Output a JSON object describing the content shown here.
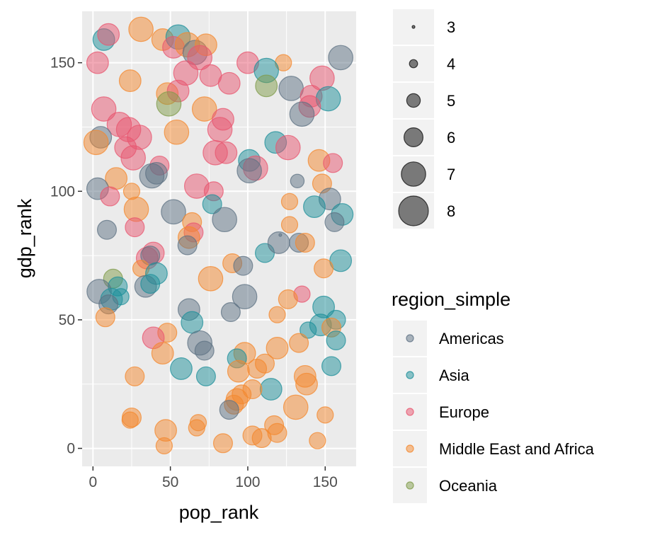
{
  "chart_data": {
    "type": "scatter",
    "xlabel": "pop_rank",
    "ylabel": "gdp_rank",
    "xlim": [
      -7,
      170
    ],
    "ylim": [
      -7,
      170
    ],
    "x_ticks": [
      0,
      50,
      100,
      150
    ],
    "y_ticks": [
      0,
      50,
      100,
      150
    ],
    "x_tick_labels": [
      "0",
      "50",
      "100",
      "150"
    ],
    "y_tick_labels": [
      "0",
      "50",
      "100",
      "150"
    ],
    "grid": true,
    "legend_position": "right",
    "size_legend": {
      "values": [
        3,
        4,
        5,
        6,
        7,
        8
      ],
      "labels": [
        "3",
        "4",
        "5",
        "6",
        "7",
        "8"
      ]
    },
    "color_legend": {
      "title": "region_simple",
      "entries": [
        {
          "name": "Americas",
          "color": "#5e7183"
        },
        {
          "name": "Asia",
          "color": "#1d8f9a"
        },
        {
          "name": "Europe",
          "color": "#e8566f"
        },
        {
          "name": "Middle East and Africa",
          "color": "#f4882d"
        },
        {
          "name": "Oceania",
          "color": "#7f9b4a"
        }
      ]
    },
    "point_opacity": 0.5,
    "points": [
      {
        "x": 7,
        "y": 159,
        "size": 6.5,
        "region": "Asia"
      },
      {
        "x": 10,
        "y": 161,
        "size": 6.5,
        "region": "Europe"
      },
      {
        "x": 31,
        "y": 163,
        "size": 7,
        "region": "Middle East and Africa"
      },
      {
        "x": 45,
        "y": 159,
        "size": 6.5,
        "region": "Middle East and Africa"
      },
      {
        "x": 55,
        "y": 160,
        "size": 7,
        "region": "Asia"
      },
      {
        "x": 52,
        "y": 156,
        "size": 6.5,
        "region": "Europe"
      },
      {
        "x": 61,
        "y": 157,
        "size": 7,
        "region": "Middle East and Africa"
      },
      {
        "x": 66,
        "y": 154,
        "size": 7,
        "region": "Americas"
      },
      {
        "x": 73,
        "y": 157,
        "size": 6.5,
        "region": "Middle East and Africa"
      },
      {
        "x": 69,
        "y": 152,
        "size": 7,
        "region": "Europe"
      },
      {
        "x": 160,
        "y": 152,
        "size": 7,
        "region": "Americas"
      },
      {
        "x": 3,
        "y": 150,
        "size": 6.5,
        "region": "Europe"
      },
      {
        "x": 100,
        "y": 150,
        "size": 6.5,
        "region": "Europe"
      },
      {
        "x": 123,
        "y": 150,
        "size": 5.5,
        "region": "Middle East and Africa"
      },
      {
        "x": 112,
        "y": 147,
        "size": 7,
        "region": "Asia"
      },
      {
        "x": 60,
        "y": 146,
        "size": 7,
        "region": "Europe"
      },
      {
        "x": 76,
        "y": 145,
        "size": 6.5,
        "region": "Europe"
      },
      {
        "x": 88,
        "y": 142,
        "size": 6.5,
        "region": "Europe"
      },
      {
        "x": 24,
        "y": 143,
        "size": 6.5,
        "region": "Middle East and Africa"
      },
      {
        "x": 112,
        "y": 141,
        "size": 6.5,
        "region": "Oceania"
      },
      {
        "x": 128,
        "y": 140,
        "size": 7,
        "region": "Americas"
      },
      {
        "x": 148,
        "y": 144,
        "size": 7,
        "region": "Europe"
      },
      {
        "x": 48,
        "y": 138,
        "size": 6.5,
        "region": "Middle East and Africa"
      },
      {
        "x": 55,
        "y": 139,
        "size": 6.5,
        "region": "Europe"
      },
      {
        "x": 141,
        "y": 137,
        "size": 6.5,
        "region": "Europe"
      },
      {
        "x": 152,
        "y": 136,
        "size": 7,
        "region": "Asia"
      },
      {
        "x": 49,
        "y": 134,
        "size": 7,
        "region": "Oceania"
      },
      {
        "x": 7,
        "y": 132,
        "size": 7,
        "region": "Europe"
      },
      {
        "x": 72,
        "y": 132,
        "size": 7,
        "region": "Middle East and Africa"
      },
      {
        "x": 140,
        "y": 133,
        "size": 6.5,
        "region": "Europe"
      },
      {
        "x": 135,
        "y": 130,
        "size": 7,
        "region": "Americas"
      },
      {
        "x": 17,
        "y": 126,
        "size": 7,
        "region": "Europe"
      },
      {
        "x": 23,
        "y": 124,
        "size": 7,
        "region": "Europe"
      },
      {
        "x": 84,
        "y": 128,
        "size": 6.5,
        "region": "Europe"
      },
      {
        "x": 82,
        "y": 124,
        "size": 7,
        "region": "Europe"
      },
      {
        "x": 54,
        "y": 123,
        "size": 7,
        "region": "Middle East and Africa"
      },
      {
        "x": 5,
        "y": 121,
        "size": 6.5,
        "region": "Americas"
      },
      {
        "x": 30,
        "y": 121,
        "size": 7,
        "region": "Europe"
      },
      {
        "x": 2,
        "y": 119,
        "size": 7,
        "region": "Middle East and Africa"
      },
      {
        "x": 118,
        "y": 119,
        "size": 6.5,
        "region": "Asia"
      },
      {
        "x": 126,
        "y": 117,
        "size": 7,
        "region": "Europe"
      },
      {
        "x": 21,
        "y": 117,
        "size": 6.5,
        "region": "Europe"
      },
      {
        "x": 79,
        "y": 115,
        "size": 7,
        "region": "Europe"
      },
      {
        "x": 86,
        "y": 115,
        "size": 6.5,
        "region": "Europe"
      },
      {
        "x": 26,
        "y": 113,
        "size": 7,
        "region": "Europe"
      },
      {
        "x": 101,
        "y": 112,
        "size": 6.5,
        "region": "Asia"
      },
      {
        "x": 146,
        "y": 112,
        "size": 6.5,
        "region": "Middle East and Africa"
      },
      {
        "x": 155,
        "y": 111,
        "size": 6,
        "region": "Europe"
      },
      {
        "x": 43,
        "y": 110,
        "size": 6,
        "region": "Europe"
      },
      {
        "x": 105,
        "y": 109,
        "size": 7,
        "region": "Europe"
      },
      {
        "x": 101,
        "y": 108,
        "size": 7,
        "region": "Americas"
      },
      {
        "x": 41,
        "y": 107,
        "size": 6.5,
        "region": "Americas"
      },
      {
        "x": 38,
        "y": 106,
        "size": 7,
        "region": "Americas"
      },
      {
        "x": 15,
        "y": 105,
        "size": 6.5,
        "region": "Middle East and Africa"
      },
      {
        "x": 132,
        "y": 104,
        "size": 5,
        "region": "Americas"
      },
      {
        "x": 148,
        "y": 103,
        "size": 6,
        "region": "Middle East and Africa"
      },
      {
        "x": 3,
        "y": 101,
        "size": 6.5,
        "region": "Americas"
      },
      {
        "x": 67,
        "y": 102,
        "size": 7,
        "region": "Europe"
      },
      {
        "x": 78,
        "y": 100,
        "size": 6,
        "region": "Europe"
      },
      {
        "x": 25,
        "y": 100,
        "size": 5.5,
        "region": "Middle East and Africa"
      },
      {
        "x": 11,
        "y": 98,
        "size": 6,
        "region": "Europe"
      },
      {
        "x": 153,
        "y": 97,
        "size": 6.5,
        "region": "Americas"
      },
      {
        "x": 127,
        "y": 96,
        "size": 5.5,
        "region": "Middle East and Africa"
      },
      {
        "x": 77,
        "y": 95,
        "size": 6,
        "region": "Asia"
      },
      {
        "x": 143,
        "y": 94,
        "size": 6.5,
        "region": "Asia"
      },
      {
        "x": 28,
        "y": 93,
        "size": 7,
        "region": "Middle East and Africa"
      },
      {
        "x": 52,
        "y": 92,
        "size": 7,
        "region": "Americas"
      },
      {
        "x": 161,
        "y": 91,
        "size": 6.5,
        "region": "Asia"
      },
      {
        "x": 85,
        "y": 89,
        "size": 7,
        "region": "Americas"
      },
      {
        "x": 64,
        "y": 88,
        "size": 6,
        "region": "Middle East and Africa"
      },
      {
        "x": 156,
        "y": 88,
        "size": 6,
        "region": "Americas"
      },
      {
        "x": 127,
        "y": 87,
        "size": 5.5,
        "region": "Middle East and Africa"
      },
      {
        "x": 9,
        "y": 85,
        "size": 6,
        "region": "Americas"
      },
      {
        "x": 27,
        "y": 86,
        "size": 6,
        "region": "Europe"
      },
      {
        "x": 65,
        "y": 84,
        "size": 6,
        "region": "Europe"
      },
      {
        "x": 62,
        "y": 82,
        "size": 6.5,
        "region": "Middle East and Africa"
      },
      {
        "x": 121,
        "y": 83,
        "size": 3,
        "region": "Americas"
      },
      {
        "x": 133,
        "y": 80,
        "size": 6,
        "region": "Americas"
      },
      {
        "x": 137,
        "y": 80,
        "size": 6,
        "region": "Middle East and Africa"
      },
      {
        "x": 61,
        "y": 79,
        "size": 6,
        "region": "Americas"
      },
      {
        "x": 39,
        "y": 76,
        "size": 6.5,
        "region": "Europe"
      },
      {
        "x": 35,
        "y": 74,
        "size": 6.5,
        "region": "Europe"
      },
      {
        "x": 37,
        "y": 75,
        "size": 6,
        "region": "Americas"
      },
      {
        "x": 111,
        "y": 76,
        "size": 6,
        "region": "Asia"
      },
      {
        "x": 120,
        "y": 80,
        "size": 6.5,
        "region": "Americas"
      },
      {
        "x": 160,
        "y": 73,
        "size": 6.5,
        "region": "Asia"
      },
      {
        "x": 90,
        "y": 72,
        "size": 6,
        "region": "Middle East and Africa"
      },
      {
        "x": 97,
        "y": 71,
        "size": 6,
        "region": "Americas"
      },
      {
        "x": 31,
        "y": 70,
        "size": 5.5,
        "region": "Middle East and Africa"
      },
      {
        "x": 149,
        "y": 70,
        "size": 6,
        "region": "Middle East and Africa"
      },
      {
        "x": 41,
        "y": 68,
        "size": 6.5,
        "region": "Asia"
      },
      {
        "x": 13,
        "y": 66,
        "size": 6,
        "region": "Oceania"
      },
      {
        "x": 16,
        "y": 63,
        "size": 6,
        "region": "Asia"
      },
      {
        "x": 76,
        "y": 66,
        "size": 7,
        "region": "Middle East and Africa"
      },
      {
        "x": 34,
        "y": 63,
        "size": 6.5,
        "region": "Americas"
      },
      {
        "x": 37,
        "y": 64,
        "size": 6,
        "region": "Asia"
      },
      {
        "x": 4,
        "y": 61,
        "size": 7,
        "region": "Americas"
      },
      {
        "x": 135,
        "y": 60,
        "size": 5.5,
        "region": "Europe"
      },
      {
        "x": 12,
        "y": 58,
        "size": 6.5,
        "region": "Asia"
      },
      {
        "x": 18,
        "y": 59,
        "size": 5.5,
        "region": "Asia"
      },
      {
        "x": 98,
        "y": 59,
        "size": 7,
        "region": "Americas"
      },
      {
        "x": 126,
        "y": 58,
        "size": 6,
        "region": "Middle East and Africa"
      },
      {
        "x": 10,
        "y": 56,
        "size": 6,
        "region": "Americas"
      },
      {
        "x": 149,
        "y": 55,
        "size": 6.5,
        "region": "Asia"
      },
      {
        "x": 62,
        "y": 54,
        "size": 6.5,
        "region": "Americas"
      },
      {
        "x": 89,
        "y": 53,
        "size": 6,
        "region": "Americas"
      },
      {
        "x": 119,
        "y": 52,
        "size": 5.5,
        "region": "Middle East and Africa"
      },
      {
        "x": 8,
        "y": 51,
        "size": 6,
        "region": "Middle East and Africa"
      },
      {
        "x": 64,
        "y": 49,
        "size": 6.5,
        "region": "Asia"
      },
      {
        "x": 147,
        "y": 48,
        "size": 6.5,
        "region": "Asia"
      },
      {
        "x": 157,
        "y": 50,
        "size": 6,
        "region": "Asia"
      },
      {
        "x": 154,
        "y": 47,
        "size": 6,
        "region": "Middle East and Africa"
      },
      {
        "x": 139,
        "y": 46,
        "size": 5.5,
        "region": "Asia"
      },
      {
        "x": 48,
        "y": 45,
        "size": 6,
        "region": "Middle East and Africa"
      },
      {
        "x": 39,
        "y": 43,
        "size": 6.5,
        "region": "Europe"
      },
      {
        "x": 157,
        "y": 42,
        "size": 6,
        "region": "Asia"
      },
      {
        "x": 69,
        "y": 41,
        "size": 7,
        "region": "Americas"
      },
      {
        "x": 133,
        "y": 41,
        "size": 6,
        "region": "Middle East and Africa"
      },
      {
        "x": 72,
        "y": 38,
        "size": 6,
        "region": "Americas"
      },
      {
        "x": 45,
        "y": 37,
        "size": 6.5,
        "region": "Middle East and Africa"
      },
      {
        "x": 98,
        "y": 37,
        "size": 6.5,
        "region": "Middle East and Africa"
      },
      {
        "x": 119,
        "y": 39,
        "size": 6.5,
        "region": "Middle East and Africa"
      },
      {
        "x": 93,
        "y": 35,
        "size": 6,
        "region": "Asia"
      },
      {
        "x": 111,
        "y": 33,
        "size": 6,
        "region": "Middle East and Africa"
      },
      {
        "x": 57,
        "y": 31,
        "size": 6.5,
        "region": "Asia"
      },
      {
        "x": 154,
        "y": 32,
        "size": 6,
        "region": "Asia"
      },
      {
        "x": 94,
        "y": 30,
        "size": 6.5,
        "region": "Middle East and Africa"
      },
      {
        "x": 106,
        "y": 31,
        "size": 6,
        "region": "Middle East and Africa"
      },
      {
        "x": 137,
        "y": 28,
        "size": 6.5,
        "region": "Middle East and Africa"
      },
      {
        "x": 27,
        "y": 28,
        "size": 6,
        "region": "Middle East and Africa"
      },
      {
        "x": 73,
        "y": 28,
        "size": 6,
        "region": "Asia"
      },
      {
        "x": 138,
        "y": 25,
        "size": 6.5,
        "region": "Middle East and Africa"
      },
      {
        "x": 115,
        "y": 23,
        "size": 6.5,
        "region": "Asia"
      },
      {
        "x": 103,
        "y": 23,
        "size": 6,
        "region": "Middle East and Africa"
      },
      {
        "x": 96,
        "y": 21,
        "size": 6,
        "region": "Middle East and Africa"
      },
      {
        "x": 93,
        "y": 19,
        "size": 6.5,
        "region": "Middle East and Africa"
      },
      {
        "x": 91,
        "y": 17,
        "size": 6,
        "region": "Middle East and Africa"
      },
      {
        "x": 131,
        "y": 16,
        "size": 7,
        "region": "Middle East and Africa"
      },
      {
        "x": 88,
        "y": 15,
        "size": 6,
        "region": "Americas"
      },
      {
        "x": 25,
        "y": 12,
        "size": 6,
        "region": "Middle East and Africa"
      },
      {
        "x": 24,
        "y": 11,
        "size": 5.5,
        "region": "Middle East and Africa"
      },
      {
        "x": 150,
        "y": 13,
        "size": 5.5,
        "region": "Middle East and Africa"
      },
      {
        "x": 68,
        "y": 10,
        "size": 5.5,
        "region": "Middle East and Africa"
      },
      {
        "x": 67,
        "y": 8,
        "size": 5.5,
        "region": "Middle East and Africa"
      },
      {
        "x": 117,
        "y": 9,
        "size": 6,
        "region": "Middle East and Africa"
      },
      {
        "x": 47,
        "y": 7,
        "size": 6.5,
        "region": "Middle East and Africa"
      },
      {
        "x": 119,
        "y": 6,
        "size": 6,
        "region": "Middle East and Africa"
      },
      {
        "x": 103,
        "y": 5,
        "size": 6,
        "region": "Middle East and Africa"
      },
      {
        "x": 109,
        "y": 4,
        "size": 6,
        "region": "Middle East and Africa"
      },
      {
        "x": 84,
        "y": 2,
        "size": 6,
        "region": "Middle East and Africa"
      },
      {
        "x": 145,
        "y": 3,
        "size": 5.5,
        "region": "Middle East and Africa"
      },
      {
        "x": 46,
        "y": 1,
        "size": 5.5,
        "region": "Middle East and Africa"
      }
    ]
  }
}
